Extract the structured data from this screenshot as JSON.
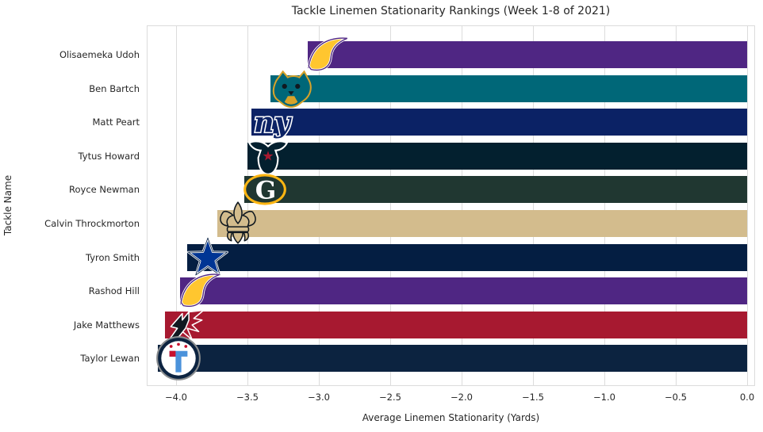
{
  "figure": {
    "background_color": "#FFFFFF",
    "grid_color": "#DCDCDC",
    "text_color": "#262626"
  },
  "chart_data": {
    "type": "bar",
    "orientation": "horizontal",
    "title": "Tackle Linemen Stationarity Rankings (Week 1-8 of 2021)",
    "xlabel": "Average Linemen Stationarity (Yards)",
    "ylabel": "Tackle Name",
    "xlim": [
      -4.21,
      0.06
    ],
    "xticks": [
      -4.0,
      -3.5,
      -3.0,
      -2.5,
      -2.0,
      -1.5,
      -1.0,
      -0.5,
      0.0
    ],
    "grid": true,
    "legend": false,
    "categories": [
      "Olisaemeka Udoh",
      "Ben Bartch",
      "Matt Peart",
      "Tytus Howard",
      "Royce Newman",
      "Calvin Throckmorton",
      "Tyron Smith",
      "Rashod Hill",
      "Jake Matthews",
      "Taylor Lewan"
    ],
    "values": [
      -3.08,
      -3.34,
      -3.47,
      -3.5,
      -3.52,
      -3.71,
      -3.92,
      -3.97,
      -4.08,
      -4.13
    ],
    "teams": [
      "vikings",
      "jaguars",
      "giants",
      "texans",
      "packers",
      "saints",
      "cowboys",
      "vikings",
      "falcons",
      "titans"
    ],
    "bar_colors": [
      "#4F2683",
      "#006778",
      "#0B2265",
      "#03202F",
      "#203731",
      "#D3BC8D",
      "#041E42",
      "#4F2683",
      "#A71930",
      "#0C2340"
    ],
    "bar_end_logos": true
  }
}
